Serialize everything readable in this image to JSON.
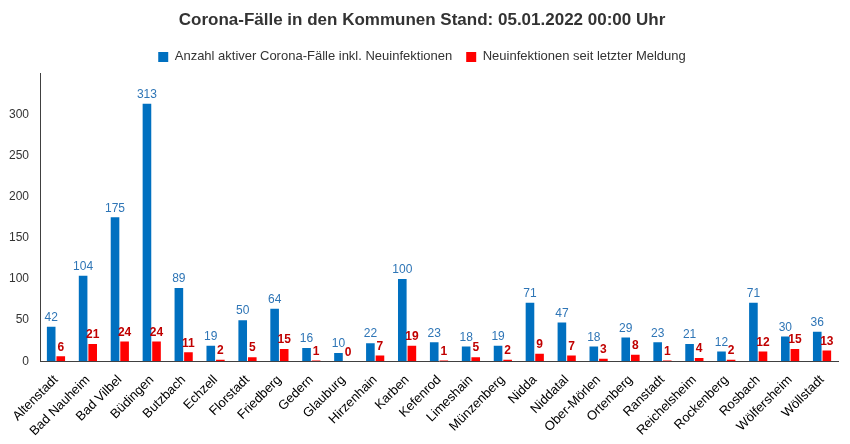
{
  "chart_data": {
    "type": "bar",
    "title": "Corona-Fälle in den Kommunen Stand: 05.01.2022 00:00 Uhr",
    "categories": [
      "Altenstadt",
      "Bad Nauheim",
      "Bad Vilbel",
      "Büdingen",
      "Butzbach",
      "Echzell",
      "Florstadt",
      "Friedberg",
      "Gedern",
      "Glauburg",
      "Hirzenhain",
      "Karben",
      "Kefenrod",
      "Limeshain",
      "Münzenberg",
      "Nidda",
      "Niddatal",
      "Ober-Mörlen",
      "Ortenberg",
      "Ranstadt",
      "Reichelsheim",
      "Rockenberg",
      "Rosbach",
      "Wölfersheim",
      "Wöllstadt"
    ],
    "series": [
      {
        "name": "Anzahl aktiver Corona-Fälle inkl. Neuinfektionen",
        "color": "#0070c0",
        "values": [
          42,
          104,
          175,
          313,
          89,
          19,
          50,
          64,
          16,
          10,
          22,
          100,
          23,
          18,
          19,
          71,
          47,
          18,
          29,
          23,
          21,
          12,
          71,
          30,
          36
        ]
      },
      {
        "name": "Neuinfektionen seit letzter Meldung",
        "color": "#ff0000",
        "values": [
          6,
          21,
          24,
          24,
          11,
          2,
          5,
          15,
          1,
          0,
          7,
          19,
          1,
          5,
          2,
          9,
          7,
          3,
          8,
          1,
          4,
          2,
          12,
          15,
          13
        ]
      }
    ],
    "ylim": [
      0,
      350
    ],
    "yticks": [
      0,
      50,
      100,
      150,
      200,
      250,
      300
    ],
    "grid": false,
    "legend": "top",
    "data_labels": true
  }
}
